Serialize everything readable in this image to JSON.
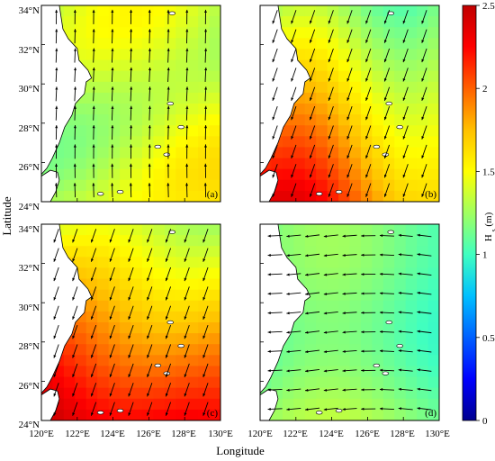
{
  "y_axis_title": "Latitude",
  "x_axis_title": "Longitude",
  "lat_ticks": [
    "34°N",
    "32°N",
    "30°N",
    "28°N",
    "26°N",
    "24°N"
  ],
  "lon_ticks": [
    "120°E",
    "122°E",
    "124°E",
    "126°E",
    "128°E",
    "130°E"
  ],
  "panels": [
    {
      "label": "(a)",
      "field": "moderate",
      "wind": "south"
    },
    {
      "label": "(b)",
      "field": "high-southwest",
      "wind": "north"
    },
    {
      "label": "(c)",
      "field": "very-high-south",
      "wind": "north"
    },
    {
      "label": "(d)",
      "field": "low",
      "wind": "west"
    }
  ],
  "colorbar": {
    "title": "H_s (m)",
    "ticks": [
      "0",
      "0.5",
      "1",
      "1.5",
      "2",
      "2.5"
    ],
    "min": 0,
    "max": 2.5,
    "colors": [
      "#00008f",
      "#0000ff",
      "#0060ff",
      "#00c0ff",
      "#40ffc0",
      "#a0ff60",
      "#ffff00",
      "#ffc000",
      "#ff6000",
      "#ff0000",
      "#c00000"
    ]
  },
  "colors": {
    "land": "#ffffff",
    "coast": "#000000",
    "arrow": "#000000"
  }
}
